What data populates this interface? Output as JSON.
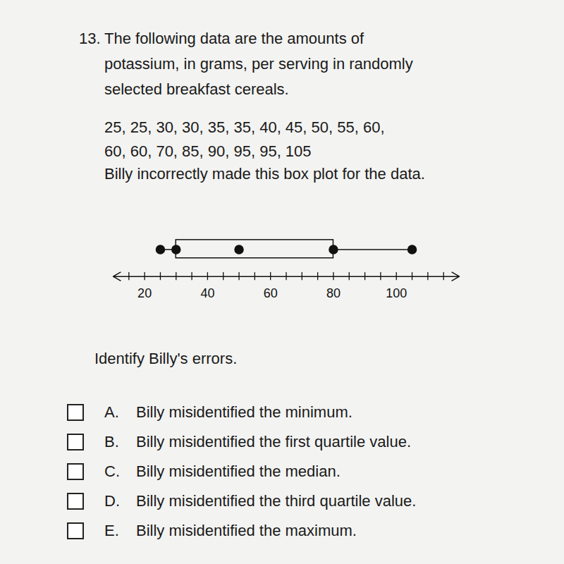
{
  "question": {
    "number": "13.",
    "lines": [
      "The following data are the amounts of",
      "potassium, in grams, per serving in randomly",
      "selected breakfast cereals."
    ]
  },
  "data_lines": [
    "25, 25, 30, 30, 35, 35, 40, 45, 50, 55, 60,",
    "60, 60, 70, 85, 90, 95, 95, 105"
  ],
  "statement": "Billy incorrectly made this box plot for the data.",
  "chart_data": {
    "type": "boxplot",
    "min": 25,
    "q1": 30,
    "median": 50,
    "q3": 80,
    "max": 105,
    "xlim": [
      10,
      120
    ],
    "xticks": [
      20,
      40,
      60,
      80,
      100
    ],
    "xtick_marks": [
      15,
      20,
      25,
      30,
      35,
      40,
      45,
      50,
      55,
      60,
      65,
      70,
      75,
      80,
      85,
      90,
      95,
      100,
      105,
      110,
      115
    ]
  },
  "prompt": "Identify Billy's errors.",
  "options": [
    {
      "letter": "A.",
      "text": "Billy misidentified the minimum."
    },
    {
      "letter": "B.",
      "text": "Billy misidentified the first quartile value."
    },
    {
      "letter": "C.",
      "text": "Billy misidentified the median."
    },
    {
      "letter": "D.",
      "text": "Billy misidentified the third quartile value."
    },
    {
      "letter": "E.",
      "text": "Billy misidentified the maximum."
    }
  ]
}
